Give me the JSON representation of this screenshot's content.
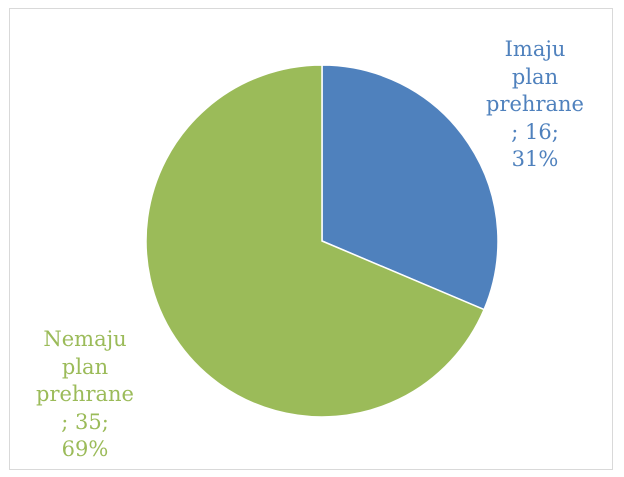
{
  "chart_data": {
    "type": "pie",
    "title": "",
    "slices": [
      {
        "name": "Imaju plan prehrane",
        "value": 16,
        "percent": "31%",
        "color": "#4f81bd",
        "label_lines": [
          "Imaju",
          "plan",
          "prehrane",
          "; 16;",
          "31%"
        ]
      },
      {
        "name": "Nemaju plan prehrane",
        "value": 35,
        "percent": "69%",
        "color": "#9bbb59",
        "label_lines": [
          "Nemaju",
          "plan",
          "prehrane",
          "; 35;",
          "69%"
        ]
      }
    ],
    "legend": "none",
    "start_angle": "12 o'clock",
    "direction": "clockwise"
  }
}
